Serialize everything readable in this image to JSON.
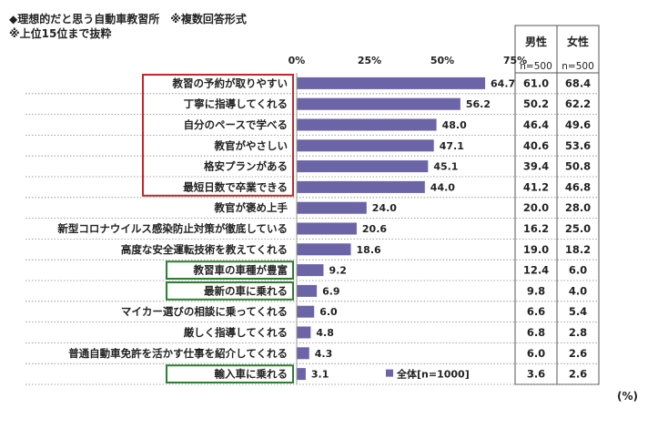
{
  "title": "◆理想的だと思う自動車教習所　※複数回答形式",
  "subtitle": "※上位15位まで抜粋",
  "unit": "(%)",
  "chart_data": {
    "type": "bar",
    "orientation": "horizontal",
    "title": "理想的だと思う自動車教習所",
    "xlim": [
      0,
      75
    ],
    "ticks": [
      0,
      25,
      50,
      75
    ],
    "tick_labels": [
      "0%",
      "25%",
      "50%",
      "75%"
    ],
    "legend": "■全体[n=1000]",
    "categories": [
      "教習の予約が取りやすい",
      "丁寧に指導してくれる",
      "自分のペースで学べる",
      "教官がやさしい",
      "格安プランがある",
      "最短日数で卒業できる",
      "教官が褒め上手",
      "新型コロナウイルス感染防止対策が徹底している",
      "高度な安全運転技術を教えてくれる",
      "教習車の車種が豊富",
      "最新の車に乗れる",
      "マイカー選びの相談に乗ってくれる",
      "厳しく指導してくれる",
      "普通自動車免許を活かす仕事を紹介してくれる",
      "輸入車に乗れる"
    ],
    "series": [
      {
        "name": "全体",
        "n": "n=1000",
        "values": [
          64.7,
          56.2,
          48.0,
          47.1,
          45.1,
          44.0,
          24.0,
          20.6,
          18.6,
          9.2,
          6.9,
          6.0,
          4.8,
          4.3,
          3.1
        ],
        "labels": [
          "64.7",
          "56.2",
          "48.0",
          "47.1",
          "45.1",
          "44.0",
          "24.0",
          "20.6",
          "18.6",
          "9.2",
          "6.9",
          "6.0",
          "4.8",
          "4.3",
          "3.1"
        ]
      }
    ],
    "table": {
      "columns": [
        {
          "name": "男性",
          "n": "n=500",
          "values": [
            "61.0",
            "50.2",
            "46.4",
            "40.6",
            "39.4",
            "41.2",
            "20.0",
            "16.2",
            "19.0",
            "12.4",
            "9.8",
            "6.6",
            "6.8",
            "6.0",
            "3.6"
          ]
        },
        {
          "name": "女性",
          "n": "n=500",
          "values": [
            "68.4",
            "62.2",
            "49.6",
            "53.6",
            "50.8",
            "46.8",
            "28.0",
            "25.0",
            "18.2",
            "6.0",
            "4.0",
            "5.4",
            "2.8",
            "2.6",
            "2.6"
          ]
        }
      ]
    },
    "highlight_groups": [
      {
        "color": "#c0282d",
        "rows": [
          0,
          1,
          2,
          3,
          4,
          5
        ]
      },
      {
        "color": "#2e7d32",
        "rows": [
          9
        ]
      },
      {
        "color": "#2e7d32",
        "rows": [
          10
        ]
      },
      {
        "color": "#2e7d32",
        "rows": [
          14
        ]
      }
    ]
  },
  "colors": {
    "bar": "#6b64a6",
    "red_box": "#c0282d",
    "green_box": "#2e7d32"
  }
}
